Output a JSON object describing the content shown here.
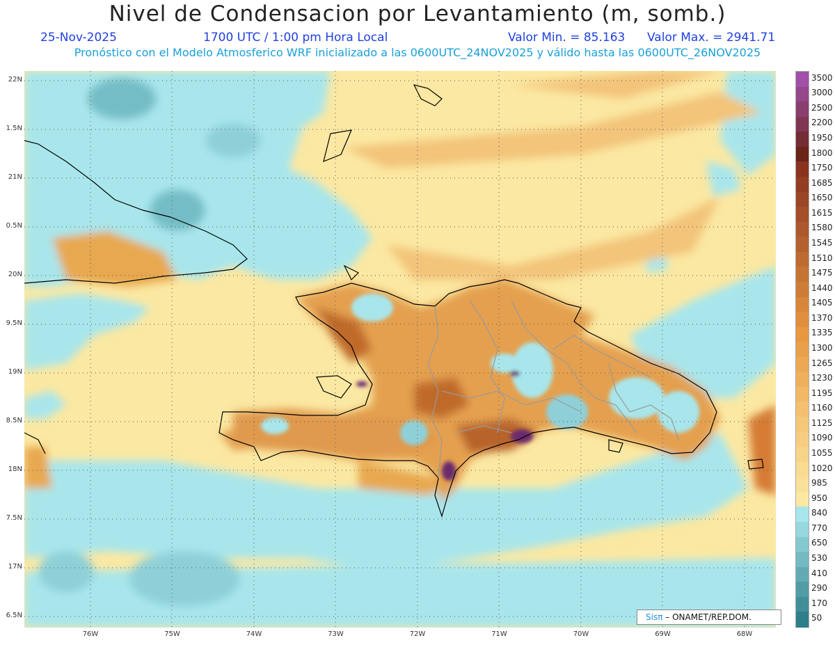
{
  "header": {
    "title": "Nivel de Condensacion por Levantamiento (m, somb.)",
    "date": "25-Nov-2025",
    "time": "1700 UTC / 1:00 pm Hora Local",
    "min_label": "Valor Min. = 85.163",
    "max_label": "Valor Max. = 2941.71",
    "forecast_note": "Pronóstico con el Modelo Atmosferico WRF inicializado a las 0600UTC_24NOV2025 y válido hasta las  0600UTC_26NOV2025"
  },
  "axes": {
    "lat_labels": [
      "22N",
      "1.5N",
      "21N",
      "0.5N",
      "20N",
      "9.5N",
      "19N",
      "8.5N",
      "18N",
      "7.5N",
      "17N",
      "6.5N"
    ],
    "lon_labels": [
      "76W",
      "75W",
      "74W",
      "73W",
      "72W",
      "71W",
      "70W",
      "69W",
      "68W"
    ]
  },
  "legend": {
    "labels": [
      "3500",
      "3000",
      "2500",
      "2200",
      "1950",
      "1800",
      "1750",
      "1685",
      "1650",
      "1615",
      "1580",
      "1545",
      "1510",
      "1475",
      "1440",
      "1405",
      "1370",
      "1335",
      "1300",
      "1265",
      "1230",
      "1195",
      "1160",
      "1125",
      "1090",
      "1055",
      "1020",
      "985",
      "950",
      "840",
      "770",
      "650",
      "530",
      "410",
      "290",
      "170",
      "50"
    ],
    "colors": {
      "purple": "#a050a8",
      "dark_brown": "#6a2418",
      "orange": "#e89840",
      "yellow": "#fbe8a2",
      "cyan": "#a8e6ec",
      "teal": "#2f7f8a"
    }
  },
  "credit": {
    "sis": "Sisπ",
    "rest": "– ONAMET/REP.DOM."
  }
}
